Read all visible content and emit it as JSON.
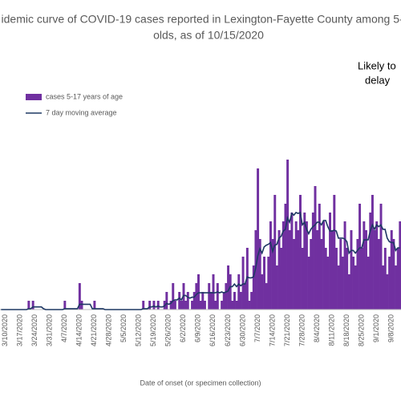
{
  "chart_data": {
    "type": "bar",
    "title_lines": [
      "idemic curve of COVID-19 cases reported in Lexington-Fayette County among 5-1",
      "olds, as of 10/15/2020"
    ],
    "annotation_lines": [
      "Likely to",
      "delay"
    ],
    "x_label": "Date of onset (or specimen collection)",
    "categories": [
      null,
      null,
      "3/10/2020",
      null,
      null,
      null,
      null,
      null,
      null,
      "3/17/2020",
      null,
      null,
      null,
      null,
      null,
      null,
      "3/24/2020",
      null,
      null,
      null,
      null,
      null,
      null,
      "3/31/2020",
      null,
      null,
      null,
      null,
      null,
      null,
      "4/7/2020",
      null,
      null,
      null,
      null,
      null,
      null,
      "4/14/2020",
      null,
      null,
      null,
      null,
      null,
      null,
      "4/21/2020",
      null,
      null,
      null,
      null,
      null,
      null,
      "4/28/2020",
      null,
      null,
      null,
      null,
      null,
      null,
      "5/5/2020",
      null,
      null,
      null,
      null,
      null,
      null,
      "5/12/2020",
      null,
      null,
      null,
      null,
      null,
      null,
      "5/19/2020",
      null,
      null,
      null,
      null,
      null,
      null,
      "5/26/2020",
      null,
      null,
      null,
      null,
      null,
      null,
      "6/2/2020",
      null,
      null,
      null,
      null,
      null,
      null,
      "6/9/2020",
      null,
      null,
      null,
      null,
      null,
      null,
      "6/16/2020",
      null,
      null,
      null,
      null,
      null,
      null,
      "6/23/2020",
      null,
      null,
      null,
      null,
      null,
      null,
      "6/30/2020",
      null,
      null,
      null,
      null,
      null,
      null,
      "7/7/2020",
      null,
      null,
      null,
      null,
      null,
      null,
      "7/14/2020",
      null,
      null,
      null,
      null,
      null,
      null,
      "7/21/2020",
      null,
      null,
      null,
      null,
      null,
      null,
      "7/28/2020",
      null,
      null,
      null,
      null,
      null,
      null,
      "8/4/2020",
      null,
      null,
      null,
      null,
      null,
      null,
      "8/11/2020",
      null,
      null,
      null,
      null,
      null,
      null,
      "8/18/2020",
      null,
      null,
      null,
      null,
      null,
      null,
      "8/25/2020",
      null,
      null,
      null,
      null,
      null,
      null,
      "9/1/2020",
      null,
      null,
      null,
      null,
      null,
      null,
      "9/8/2020",
      null,
      null,
      null,
      null
    ],
    "series": [
      {
        "name": "cases 5-17 years of age",
        "type": "bar",
        "color": "#7030a0",
        "values": [
          0,
          0,
          0,
          0,
          0,
          0,
          0,
          0,
          0,
          0,
          0,
          0,
          0,
          1,
          0,
          1,
          0,
          0,
          0,
          0,
          0,
          0,
          0,
          0,
          0,
          0,
          0,
          0,
          0,
          0,
          1,
          0,
          0,
          0,
          0,
          0,
          0,
          3,
          1,
          0,
          0,
          0,
          0,
          0,
          1,
          0,
          0,
          0,
          0,
          0,
          0,
          0,
          0,
          0,
          0,
          0,
          0,
          0,
          0,
          0,
          0,
          0,
          0,
          0,
          0,
          0,
          0,
          1,
          0,
          0,
          1,
          0,
          1,
          0,
          1,
          0,
          0,
          1,
          2,
          0,
          1,
          3,
          1,
          0,
          2,
          1,
          3,
          1,
          2,
          0,
          1,
          2,
          3,
          4,
          1,
          2,
          1,
          0,
          3,
          2,
          4,
          1,
          3,
          0,
          1,
          2,
          3,
          5,
          4,
          1,
          2,
          1,
          4,
          2,
          6,
          3,
          7,
          1,
          2,
          5,
          9,
          16,
          8,
          4,
          6,
          3,
          6,
          10,
          8,
          13,
          5,
          9,
          7,
          10,
          12,
          17,
          9,
          11,
          8,
          10,
          9,
          13,
          7,
          11,
          10,
          6,
          8,
          11,
          14,
          9,
          12,
          8,
          10,
          7,
          6,
          11,
          9,
          13,
          7,
          5,
          8,
          6,
          10,
          7,
          4,
          9,
          6,
          5,
          8,
          12,
          7,
          10,
          9,
          6,
          11,
          13,
          9,
          10,
          8,
          12,
          5,
          7,
          4,
          6,
          9,
          8,
          5,
          7,
          10
        ]
      },
      {
        "name": "7 day moving average",
        "type": "line",
        "color": "#1f3864",
        "values": [
          0,
          0,
          0,
          0,
          0,
          0,
          0,
          0,
          0,
          0,
          0,
          0,
          0,
          0.1,
          0.1,
          0.3,
          0.3,
          0.3,
          0.3,
          0.3,
          0.1,
          0,
          0,
          0,
          0,
          0,
          0,
          0,
          0,
          0,
          0.1,
          0.1,
          0.1,
          0.1,
          0.1,
          0.1,
          0.1,
          0.6,
          0.6,
          0.6,
          0.6,
          0.6,
          0.6,
          0.1,
          0.1,
          0.1,
          0.1,
          0.1,
          0.1,
          0,
          0,
          0,
          0,
          0,
          0,
          0,
          0,
          0,
          0,
          0,
          0,
          0,
          0,
          0,
          0,
          0,
          0,
          0.1,
          0.1,
          0.1,
          0.3,
          0.3,
          0.4,
          0.3,
          0.4,
          0.3,
          0.3,
          0.4,
          0.7,
          0.6,
          0.7,
          1.0,
          1.1,
          1.1,
          1.3,
          1.1,
          1.6,
          1.6,
          1.4,
          1.3,
          1.4,
          1.4,
          1.7,
          1.9,
          1.9,
          1.9,
          1.9,
          1.9,
          1.9,
          1.9,
          1.9,
          1.9,
          2.0,
          1.9,
          2.0,
          1.9,
          2.0,
          2.1,
          2.6,
          2.6,
          2.9,
          2.6,
          2.9,
          2.7,
          2.9,
          2.9,
          3.7,
          3.6,
          3.6,
          3.7,
          4.7,
          6.1,
          6.9,
          6.4,
          7.1,
          7.3,
          7.4,
          7.6,
          6.6,
          7.3,
          7.4,
          8.1,
          8.3,
          8.9,
          9.1,
          10.4,
          9.9,
          10.9,
          10.7,
          11.0,
          10.9,
          11.0,
          9.6,
          9.9,
          9.1,
          8.6,
          9.1,
          9.4,
          9.6,
          9.9,
          9.9,
          9.6,
          10.1,
          10.1,
          9.4,
          8.9,
          8.9,
          9.0,
          8.9,
          8.1,
          8.1,
          8.1,
          8.0,
          7.7,
          6.4,
          6.7,
          6.7,
          6.4,
          6.7,
          7.0,
          7.0,
          7.9,
          7.9,
          7.9,
          8.9,
          9.6,
          9.1,
          9.6,
          9.4,
          9.6,
          9.1,
          9.1,
          8.1,
          7.7,
          7.6,
          7.6,
          6.7,
          7.0,
          7.0
        ]
      }
    ],
    "ylim": [
      0,
      20
    ]
  }
}
